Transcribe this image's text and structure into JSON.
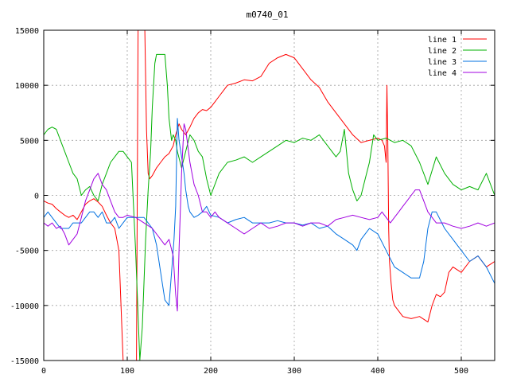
{
  "chart_data": {
    "type": "line",
    "title": "m0740_01",
    "xlabel": "",
    "ylabel": "",
    "xlim": [
      0,
      540
    ],
    "ylim": [
      -15000,
      15000
    ],
    "xticks": [
      0,
      100,
      200,
      300,
      400,
      500
    ],
    "yticks": [
      -15000,
      -10000,
      -5000,
      0,
      5000,
      10000,
      15000
    ],
    "grid": true,
    "legend_position": "top-right",
    "series": [
      {
        "name": "line 1",
        "color": "#ff0000",
        "x": [
          0,
          5,
          10,
          15,
          20,
          25,
          30,
          35,
          40,
          45,
          50,
          55,
          60,
          65,
          70,
          75,
          80,
          85,
          90,
          95,
          97,
          99,
          101,
          103,
          105,
          107,
          109,
          111,
          113,
          115,
          117,
          119,
          121,
          123,
          125,
          127,
          130,
          135,
          140,
          145,
          150,
          155,
          158,
          160,
          162,
          165,
          170,
          175,
          180,
          185,
          190,
          195,
          200,
          205,
          210,
          215,
          220,
          230,
          240,
          250,
          260,
          270,
          280,
          290,
          300,
          310,
          320,
          330,
          340,
          350,
          360,
          370,
          380,
          390,
          400,
          405,
          408,
          410,
          411,
          412,
          413,
          414,
          416,
          418,
          420,
          425,
          430,
          440,
          450,
          460,
          465,
          470,
          475,
          480,
          485,
          490,
          500,
          510,
          520,
          530,
          540
        ],
        "y": [
          -500,
          -700,
          -800,
          -1200,
          -1500,
          -1800,
          -2000,
          -1800,
          -2200,
          -1500,
          -800,
          -500,
          -300,
          -600,
          -1000,
          -1800,
          -2500,
          -3000,
          -5000,
          -15000,
          -15000,
          -15000,
          -15000,
          -15000,
          -15000,
          -15000,
          -15000,
          -15000,
          15000,
          15000,
          15000,
          15000,
          15000,
          6000,
          2000,
          1500,
          1800,
          2500,
          3000,
          3500,
          3800,
          4500,
          5500,
          6000,
          6500,
          6000,
          5500,
          6200,
          7000,
          7500,
          7800,
          7700,
          8000,
          8500,
          9000,
          9500,
          10000,
          10200,
          10500,
          10400,
          10800,
          12000,
          12500,
          12800,
          12500,
          11500,
          10500,
          9800,
          8500,
          7500,
          6500,
          5500,
          4800,
          5000,
          5200,
          5000,
          4500,
          3000,
          10000,
          5000,
          -3000,
          -6000,
          -8000,
          -9500,
          -10000,
          -10500,
          -11000,
          -11200,
          -11000,
          -11500,
          -10000,
          -9000,
          -9200,
          -8800,
          -7000,
          -6500,
          -7000,
          -6000,
          -5500,
          -6500,
          -6000
        ]
      },
      {
        "name": "line 2",
        "color": "#00b000",
        "x": [
          0,
          5,
          10,
          15,
          20,
          25,
          30,
          35,
          40,
          45,
          50,
          55,
          60,
          65,
          70,
          75,
          80,
          85,
          90,
          95,
          100,
          105,
          110,
          115,
          118,
          120,
          122,
          125,
          128,
          130,
          133,
          135,
          138,
          140,
          143,
          145,
          148,
          150,
          153,
          155,
          158,
          160,
          165,
          170,
          175,
          180,
          185,
          190,
          195,
          200,
          210,
          220,
          230,
          240,
          250,
          260,
          270,
          280,
          290,
          300,
          310,
          320,
          330,
          340,
          350,
          355,
          360,
          365,
          370,
          375,
          380,
          385,
          390,
          395,
          400,
          410,
          420,
          430,
          440,
          450,
          460,
          470,
          480,
          490,
          500,
          510,
          520,
          530,
          540
        ],
        "y": [
          5500,
          6000,
          6200,
          6000,
          5000,
          4000,
          3000,
          2000,
          1500,
          0,
          500,
          800,
          0,
          -500,
          1000,
          2000,
          3000,
          3500,
          4000,
          4000,
          3500,
          3000,
          -5000,
          -15000,
          -12000,
          -8000,
          -4000,
          500,
          4000,
          8000,
          12000,
          12800,
          12800,
          12800,
          12800,
          12800,
          10000,
          7000,
          5000,
          5500,
          5000,
          4000,
          2500,
          4000,
          5500,
          5000,
          4000,
          3500,
          1500,
          0,
          2000,
          3000,
          3200,
          3500,
          3000,
          3500,
          4000,
          4500,
          5000,
          4800,
          5200,
          5000,
          5500,
          4500,
          3500,
          4000,
          6000,
          2000,
          500,
          -500,
          0,
          1500,
          3000,
          5500,
          5000,
          5200,
          4800,
          5000,
          4500,
          3000,
          1000,
          3500,
          2000,
          1000,
          500,
          800,
          500,
          2000,
          0
        ]
      },
      {
        "name": "line 3",
        "color": "#0070e0",
        "x": [
          0,
          5,
          10,
          15,
          20,
          25,
          30,
          35,
          40,
          45,
          50,
          55,
          60,
          65,
          70,
          75,
          80,
          85,
          90,
          95,
          100,
          110,
          120,
          130,
          135,
          140,
          145,
          150,
          153,
          156,
          158,
          160,
          162,
          165,
          168,
          170,
          173,
          175,
          180,
          185,
          190,
          195,
          200,
          210,
          220,
          230,
          240,
          250,
          260,
          270,
          280,
          290,
          300,
          310,
          320,
          330,
          340,
          350,
          360,
          370,
          375,
          380,
          385,
          390,
          400,
          410,
          420,
          430,
          440,
          450,
          455,
          460,
          465,
          470,
          480,
          490,
          500,
          510,
          520,
          530,
          540
        ],
        "y": [
          -2000,
          -1500,
          -2000,
          -2500,
          -3000,
          -3000,
          -3000,
          -2500,
          -2500,
          -2500,
          -2000,
          -1500,
          -1500,
          -2000,
          -1500,
          -2500,
          -2500,
          -2000,
          -3000,
          -2500,
          -2000,
          -2000,
          -2000,
          -3000,
          -4500,
          -7000,
          -9500,
          -10000,
          -7000,
          -4000,
          -1000,
          7000,
          5000,
          3500,
          2000,
          500,
          -1000,
          -1500,
          -2000,
          -1800,
          -1500,
          -1000,
          -1800,
          -2000,
          -2500,
          -2200,
          -2000,
          -2500,
          -2500,
          -2500,
          -2300,
          -2500,
          -2500,
          -2700,
          -2500,
          -3000,
          -2800,
          -3500,
          -4000,
          -4500,
          -5000,
          -4000,
          -3500,
          -3000,
          -3500,
          -5000,
          -6500,
          -7000,
          -7500,
          -7500,
          -6000,
          -3000,
          -1500,
          -1500,
          -3000,
          -4000,
          -5000,
          -6000,
          -5500,
          -6500,
          -8000
        ]
      },
      {
        "name": "line 4",
        "color": "#a000e0",
        "x": [
          0,
          5,
          10,
          15,
          20,
          25,
          30,
          35,
          40,
          45,
          50,
          55,
          60,
          65,
          70,
          75,
          80,
          85,
          90,
          95,
          100,
          110,
          120,
          130,
          140,
          145,
          150,
          155,
          158,
          160,
          162,
          165,
          168,
          170,
          175,
          180,
          185,
          190,
          195,
          200,
          205,
          210,
          220,
          230,
          240,
          250,
          260,
          270,
          280,
          290,
          300,
          310,
          320,
          330,
          340,
          350,
          360,
          370,
          380,
          390,
          400,
          405,
          410,
          415,
          420,
          425,
          430,
          435,
          440,
          445,
          450,
          455,
          460,
          465,
          470,
          480,
          490,
          500,
          510,
          520,
          530,
          540
        ],
        "y": [
          -2500,
          -2800,
          -2500,
          -3000,
          -2800,
          -3500,
          -4500,
          -4000,
          -3500,
          -2000,
          -500,
          500,
          1500,
          2000,
          1000,
          500,
          -500,
          -1500,
          -2000,
          -2000,
          -1800,
          -2000,
          -2500,
          -3000,
          -4000,
          -4500,
          -4000,
          -5500,
          -9000,
          -10500,
          -5000,
          2000,
          6500,
          6000,
          3000,
          1000,
          0,
          -1500,
          -1500,
          -2000,
          -1500,
          -2000,
          -2500,
          -3000,
          -3500,
          -3000,
          -2500,
          -3000,
          -2800,
          -2500,
          -2500,
          -2800,
          -2500,
          -2500,
          -2800,
          -2200,
          -2000,
          -1800,
          -2000,
          -2200,
          -2000,
          -1500,
          -2000,
          -2500,
          -2000,
          -1500,
          -1000,
          -500,
          0,
          500,
          500,
          -500,
          -1500,
          -2000,
          -2500,
          -2500,
          -2800,
          -3000,
          -2800,
          -2500,
          -2800,
          -2500
        ]
      }
    ]
  }
}
